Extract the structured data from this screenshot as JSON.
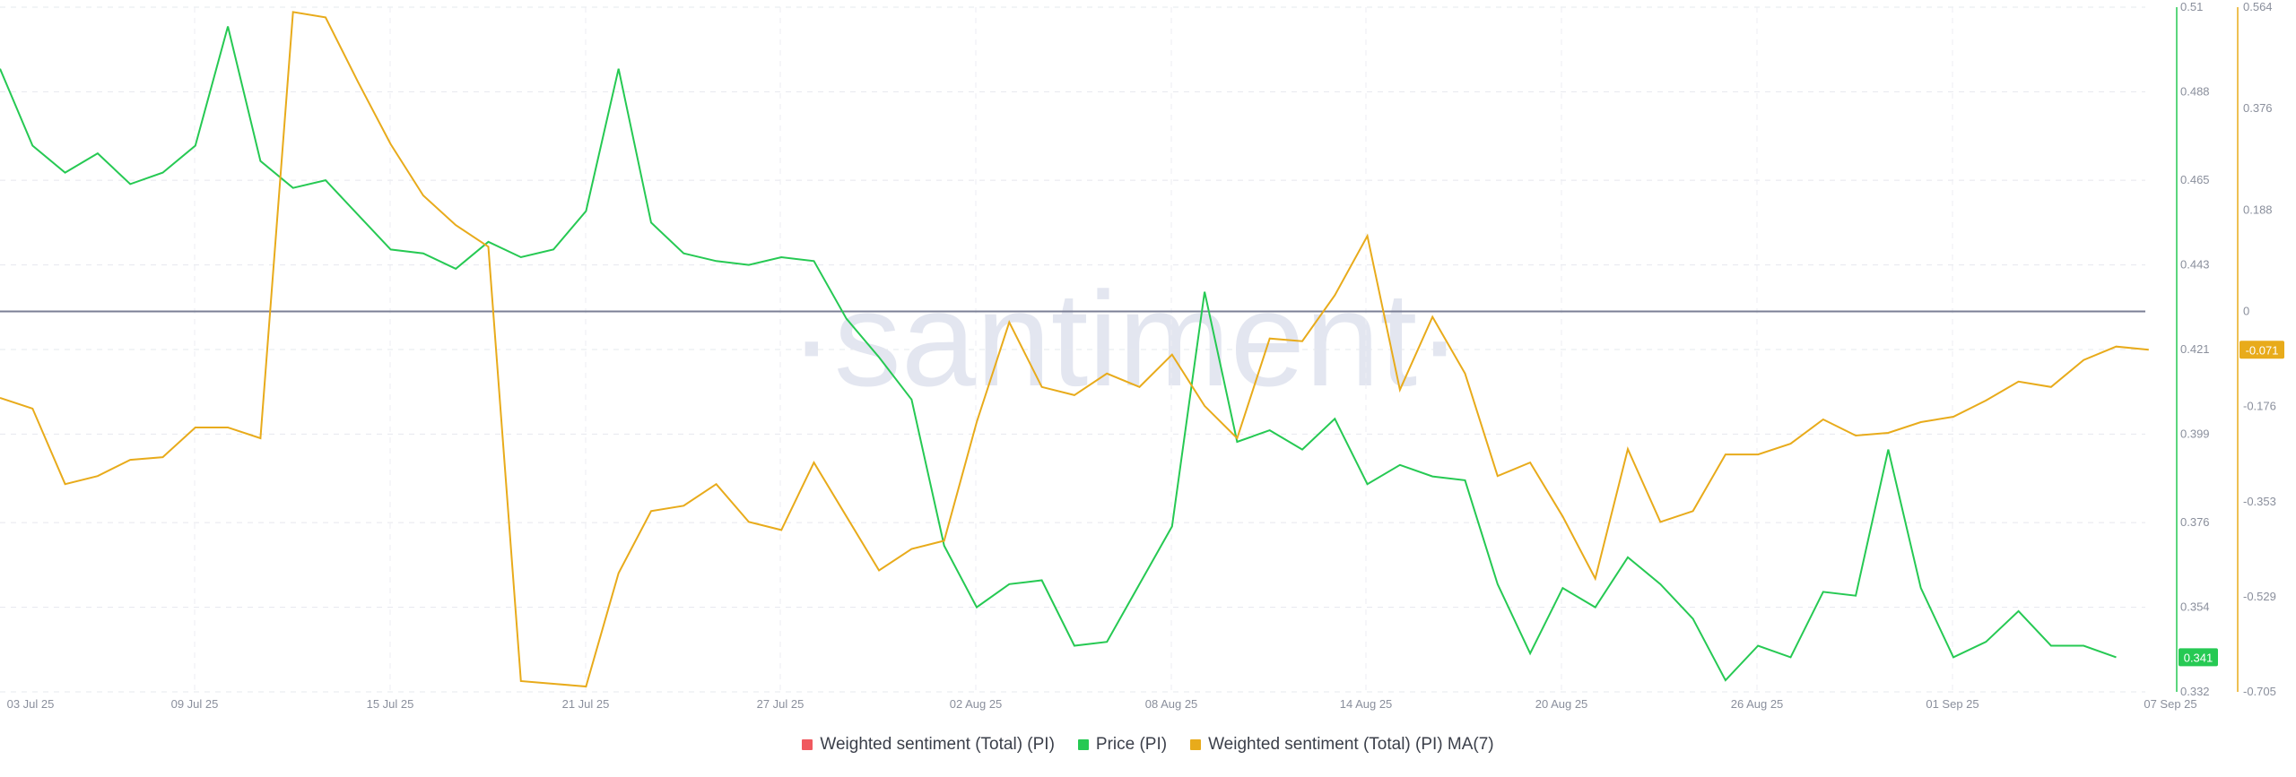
{
  "watermark": "·santiment·",
  "chart_data": {
    "type": "line",
    "x_labels": [
      "03 Jul 25",
      "09 Jul 25",
      "15 Jul 25",
      "21 Jul 25",
      "27 Jul 25",
      "02 Aug 25",
      "08 Aug 25",
      "14 Aug 25",
      "20 Aug 25",
      "26 Aug 25",
      "01 Sep 25",
      "07 Sep 25"
    ],
    "x_start": "2025-07-03",
    "price_axis": {
      "ticks": [
        "0.51",
        "0.488",
        "0.465",
        "0.443",
        "0.421",
        "0.399",
        "0.376",
        "0.354",
        "0.332"
      ],
      "range": [
        0.332,
        0.51
      ]
    },
    "sentiment_axis": {
      "ticks": [
        "0.564",
        "0.376",
        "0.188",
        "0",
        "-0.176",
        "-0.353",
        "-0.529",
        "-0.705"
      ],
      "range": [
        -0.705,
        0.564
      ]
    },
    "price_current_label": "0.341",
    "sentiment_current_label": "-0.071",
    "zero_line_value": 0,
    "series": [
      {
        "name": "Weighted sentiment (Total) (PI)",
        "color": "#f0595f",
        "values": []
      },
      {
        "name": "Price (PI)",
        "color": "#26c953",
        "axis": "price",
        "values": [
          0.494,
          0.474,
          0.467,
          0.472,
          0.464,
          0.467,
          0.474,
          0.505,
          0.47,
          0.463,
          0.465,
          0.456,
          0.447,
          0.446,
          0.442,
          0.449,
          0.445,
          0.447,
          0.457,
          0.494,
          0.454,
          0.446,
          0.444,
          0.443,
          0.445,
          0.444,
          0.429,
          0.419,
          0.408,
          0.37,
          0.354,
          0.36,
          0.361,
          0.344,
          0.345,
          0.36,
          0.375,
          0.436,
          0.397,
          0.4,
          0.395,
          0.403,
          0.386,
          0.391,
          0.388,
          0.387,
          0.36,
          0.342,
          0.359,
          0.354,
          0.367,
          0.36,
          0.351,
          0.335,
          0.344,
          0.341,
          0.358,
          0.357,
          0.395,
          0.359,
          0.341,
          0.345,
          0.353,
          0.344,
          0.344,
          0.341
        ]
      },
      {
        "name": "Weighted sentiment (Total) (PI) MA(7)",
        "color": "#e8ab1b",
        "axis": "sentiment",
        "values": [
          -0.16,
          -0.18,
          -0.32,
          -0.305,
          -0.275,
          -0.27,
          -0.215,
          -0.215,
          -0.235,
          0.555,
          0.545,
          0.425,
          0.31,
          0.215,
          0.16,
          0.12,
          -0.685,
          -0.69,
          -0.695,
          -0.485,
          -0.37,
          -0.36,
          -0.32,
          -0.39,
          -0.405,
          -0.28,
          -0.38,
          -0.48,
          -0.44,
          -0.425,
          -0.205,
          -0.02,
          -0.14,
          -0.155,
          -0.115,
          -0.14,
          -0.08,
          -0.175,
          -0.235,
          -0.05,
          -0.055,
          0.03,
          0.14,
          -0.145,
          -0.01,
          -0.115,
          -0.305,
          -0.28,
          -0.38,
          -0.495,
          -0.255,
          -0.39,
          -0.37,
          -0.265,
          -0.265,
          -0.245,
          -0.2,
          -0.23,
          -0.225,
          -0.205,
          -0.195,
          -0.165,
          -0.13,
          -0.14,
          -0.09,
          -0.065,
          -0.071
        ]
      }
    ],
    "grid": true,
    "legend_position": "bottom-center"
  }
}
